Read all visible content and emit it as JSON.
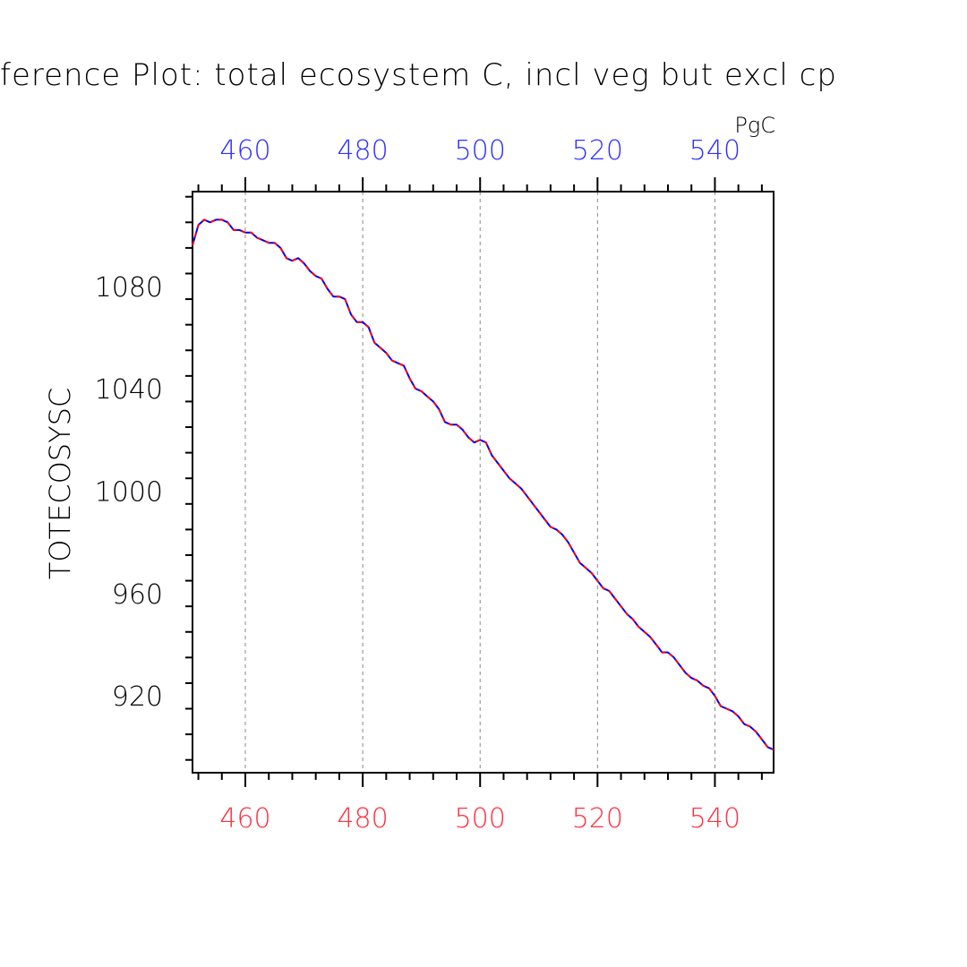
{
  "chart_data": {
    "type": "line",
    "title": "ference Plot: total ecosystem C, incl veg but excl cp",
    "ylabel": "TOTECOSYSC",
    "units": "PgC",
    "xlim": [
      451,
      550
    ],
    "ylim": [
      890,
      1117
    ],
    "x_ticks_major": [
      460,
      480,
      500,
      520,
      540
    ],
    "x_tick_labels": [
      "460",
      "480",
      "500",
      "520",
      "540"
    ],
    "y_ticks_major": [
      920,
      960,
      1000,
      1040,
      1080
    ],
    "y_tick_labels": [
      "920",
      "960",
      "1000",
      "1040",
      "1080"
    ],
    "grid": "vertical dashed at major x ticks",
    "colors": {
      "top_axis": "#3030ff",
      "bottom_axis": "#ff3040",
      "line_red": "#ff0000",
      "line_blue": "#0000ff"
    },
    "series": [
      {
        "color": "#0000ff",
        "x": [
          451,
          452,
          453,
          454,
          455,
          456,
          457,
          458,
          459,
          460,
          461,
          462,
          463,
          464,
          465,
          466,
          467,
          468,
          469,
          470,
          471,
          472,
          473,
          474,
          475,
          476,
          477,
          478,
          479,
          480,
          481,
          482,
          483,
          484,
          485,
          486,
          487,
          488,
          489,
          490,
          491,
          492,
          493,
          494,
          495,
          496,
          497,
          498,
          499,
          500,
          501,
          502,
          503,
          504,
          505,
          506,
          507,
          508,
          509,
          510,
          511,
          512,
          513,
          514,
          515,
          516,
          517,
          518,
          519,
          520,
          521,
          522,
          523,
          524,
          525,
          526,
          527,
          528,
          529,
          530,
          531,
          532,
          533,
          534,
          535,
          536,
          537,
          538,
          539,
          540,
          541,
          542,
          543,
          544,
          545,
          546,
          547,
          548,
          549,
          550
        ],
        "y": [
          1096,
          1104,
          1106,
          1105,
          1106,
          1106,
          1105,
          1102,
          1102,
          1101,
          1101,
          1099,
          1098,
          1097,
          1097,
          1095,
          1091,
          1090,
          1091,
          1089,
          1086,
          1084,
          1083,
          1079,
          1076,
          1076,
          1075,
          1069,
          1066,
          1066,
          1064,
          1058,
          1056,
          1054,
          1051,
          1050,
          1049,
          1044,
          1040,
          1039,
          1037,
          1035,
          1032,
          1027,
          1026,
          1026,
          1024,
          1021,
          1019,
          1020,
          1019,
          1014,
          1011,
          1008,
          1005,
          1003,
          1001,
          998,
          995,
          992,
          989,
          986,
          985,
          983,
          980,
          976,
          972,
          970,
          968,
          965,
          962,
          961,
          958,
          955,
          952,
          950,
          947,
          945,
          943,
          940,
          937,
          937,
          935,
          932,
          929,
          927,
          926,
          924,
          923,
          920,
          916,
          915,
          914,
          912,
          909,
          908,
          906,
          903,
          900,
          899
        ]
      },
      {
        "color": "#ff0000",
        "x": [
          451,
          452,
          453,
          454,
          455,
          456,
          457,
          458,
          459,
          460,
          461,
          462,
          463,
          464,
          465,
          466,
          467,
          468,
          469,
          470,
          471,
          472,
          473,
          474,
          475,
          476,
          477,
          478,
          479,
          480,
          481,
          482,
          483,
          484,
          485,
          486,
          487,
          488,
          489,
          490,
          491,
          492,
          493,
          494,
          495,
          496,
          497,
          498,
          499,
          500,
          501,
          502,
          503,
          504,
          505,
          506,
          507,
          508,
          509,
          510,
          511,
          512,
          513,
          514,
          515,
          516,
          517,
          518,
          519,
          520,
          521,
          522,
          523,
          524,
          525,
          526,
          527,
          528,
          529,
          530,
          531,
          532,
          533,
          534,
          535,
          536,
          537,
          538,
          539,
          540,
          541,
          542,
          543,
          544,
          545,
          546,
          547,
          548,
          549,
          550
        ],
        "y": [
          1096,
          1104,
          1106,
          1105,
          1106,
          1106,
          1105,
          1102,
          1102,
          1101,
          1101,
          1099,
          1098,
          1097,
          1097,
          1095,
          1091,
          1090,
          1091,
          1089,
          1086,
          1084,
          1083,
          1079,
          1076,
          1076,
          1075,
          1069,
          1066,
          1066,
          1064,
          1058,
          1056,
          1054,
          1051,
          1050,
          1049,
          1044,
          1040,
          1039,
          1037,
          1035,
          1032,
          1027,
          1026,
          1026,
          1024,
          1021,
          1019,
          1020,
          1019,
          1014,
          1011,
          1008,
          1005,
          1003,
          1001,
          998,
          995,
          992,
          989,
          986,
          985,
          983,
          980,
          976,
          972,
          970,
          968,
          965,
          962,
          961,
          958,
          955,
          952,
          950,
          947,
          945,
          943,
          940,
          937,
          937,
          935,
          932,
          929,
          927,
          926,
          924,
          923,
          920,
          916,
          915,
          914,
          912,
          909,
          908,
          906,
          903,
          900,
          899
        ]
      }
    ]
  }
}
